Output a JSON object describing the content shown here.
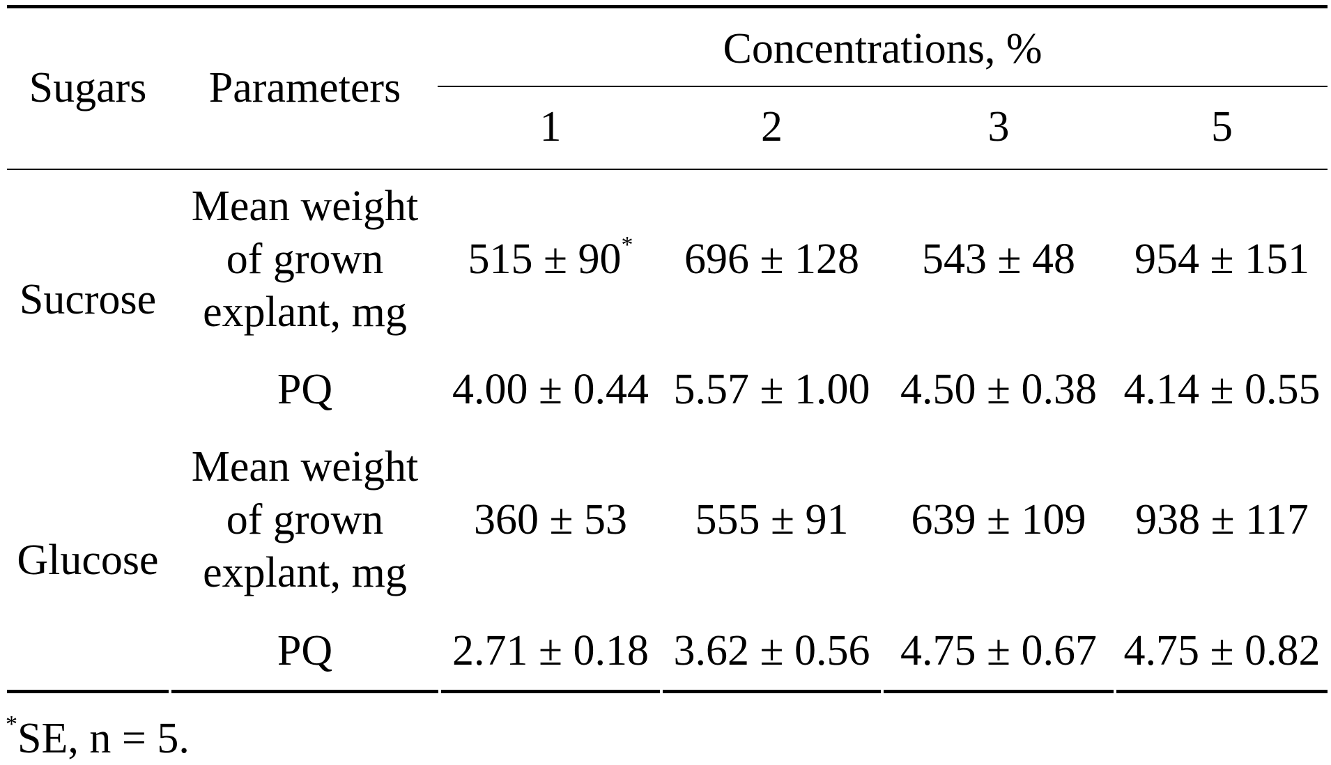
{
  "header": {
    "sugars": "Sugars",
    "parameters": "Parameters",
    "concentrations": "Concentrations, %",
    "columns": [
      "1",
      "2",
      "3",
      "5"
    ]
  },
  "rows": [
    {
      "sugar": "Sucrose",
      "params": [
        {
          "label_lines": [
            "Mean weight",
            "of grown",
            "explant, mg"
          ],
          "values": [
            "515 ± 90",
            "696 ± 128",
            "543 ± 48",
            "954 ± 151"
          ],
          "first_marker": "*"
        },
        {
          "label_lines": [
            "PQ"
          ],
          "values": [
            "4.00 ± 0.44",
            "5.57 ± 1.00",
            "4.50 ± 0.38",
            "4.14 ± 0.55"
          ]
        }
      ]
    },
    {
      "sugar": "Glucose",
      "params": [
        {
          "label_lines": [
            "Mean weight",
            "of grown",
            "explant, mg"
          ],
          "values": [
            "360 ± 53",
            "555 ± 91",
            "639 ± 109",
            "938 ± 117"
          ]
        },
        {
          "label_lines": [
            "PQ"
          ],
          "values": [
            "2.71 ± 0.18",
            "3.62 ± 0.56",
            "4.75 ± 0.67",
            "4.75 ± 0.82"
          ]
        }
      ]
    }
  ],
  "footnote": {
    "marker": "*",
    "text": "SE, n = 5."
  }
}
